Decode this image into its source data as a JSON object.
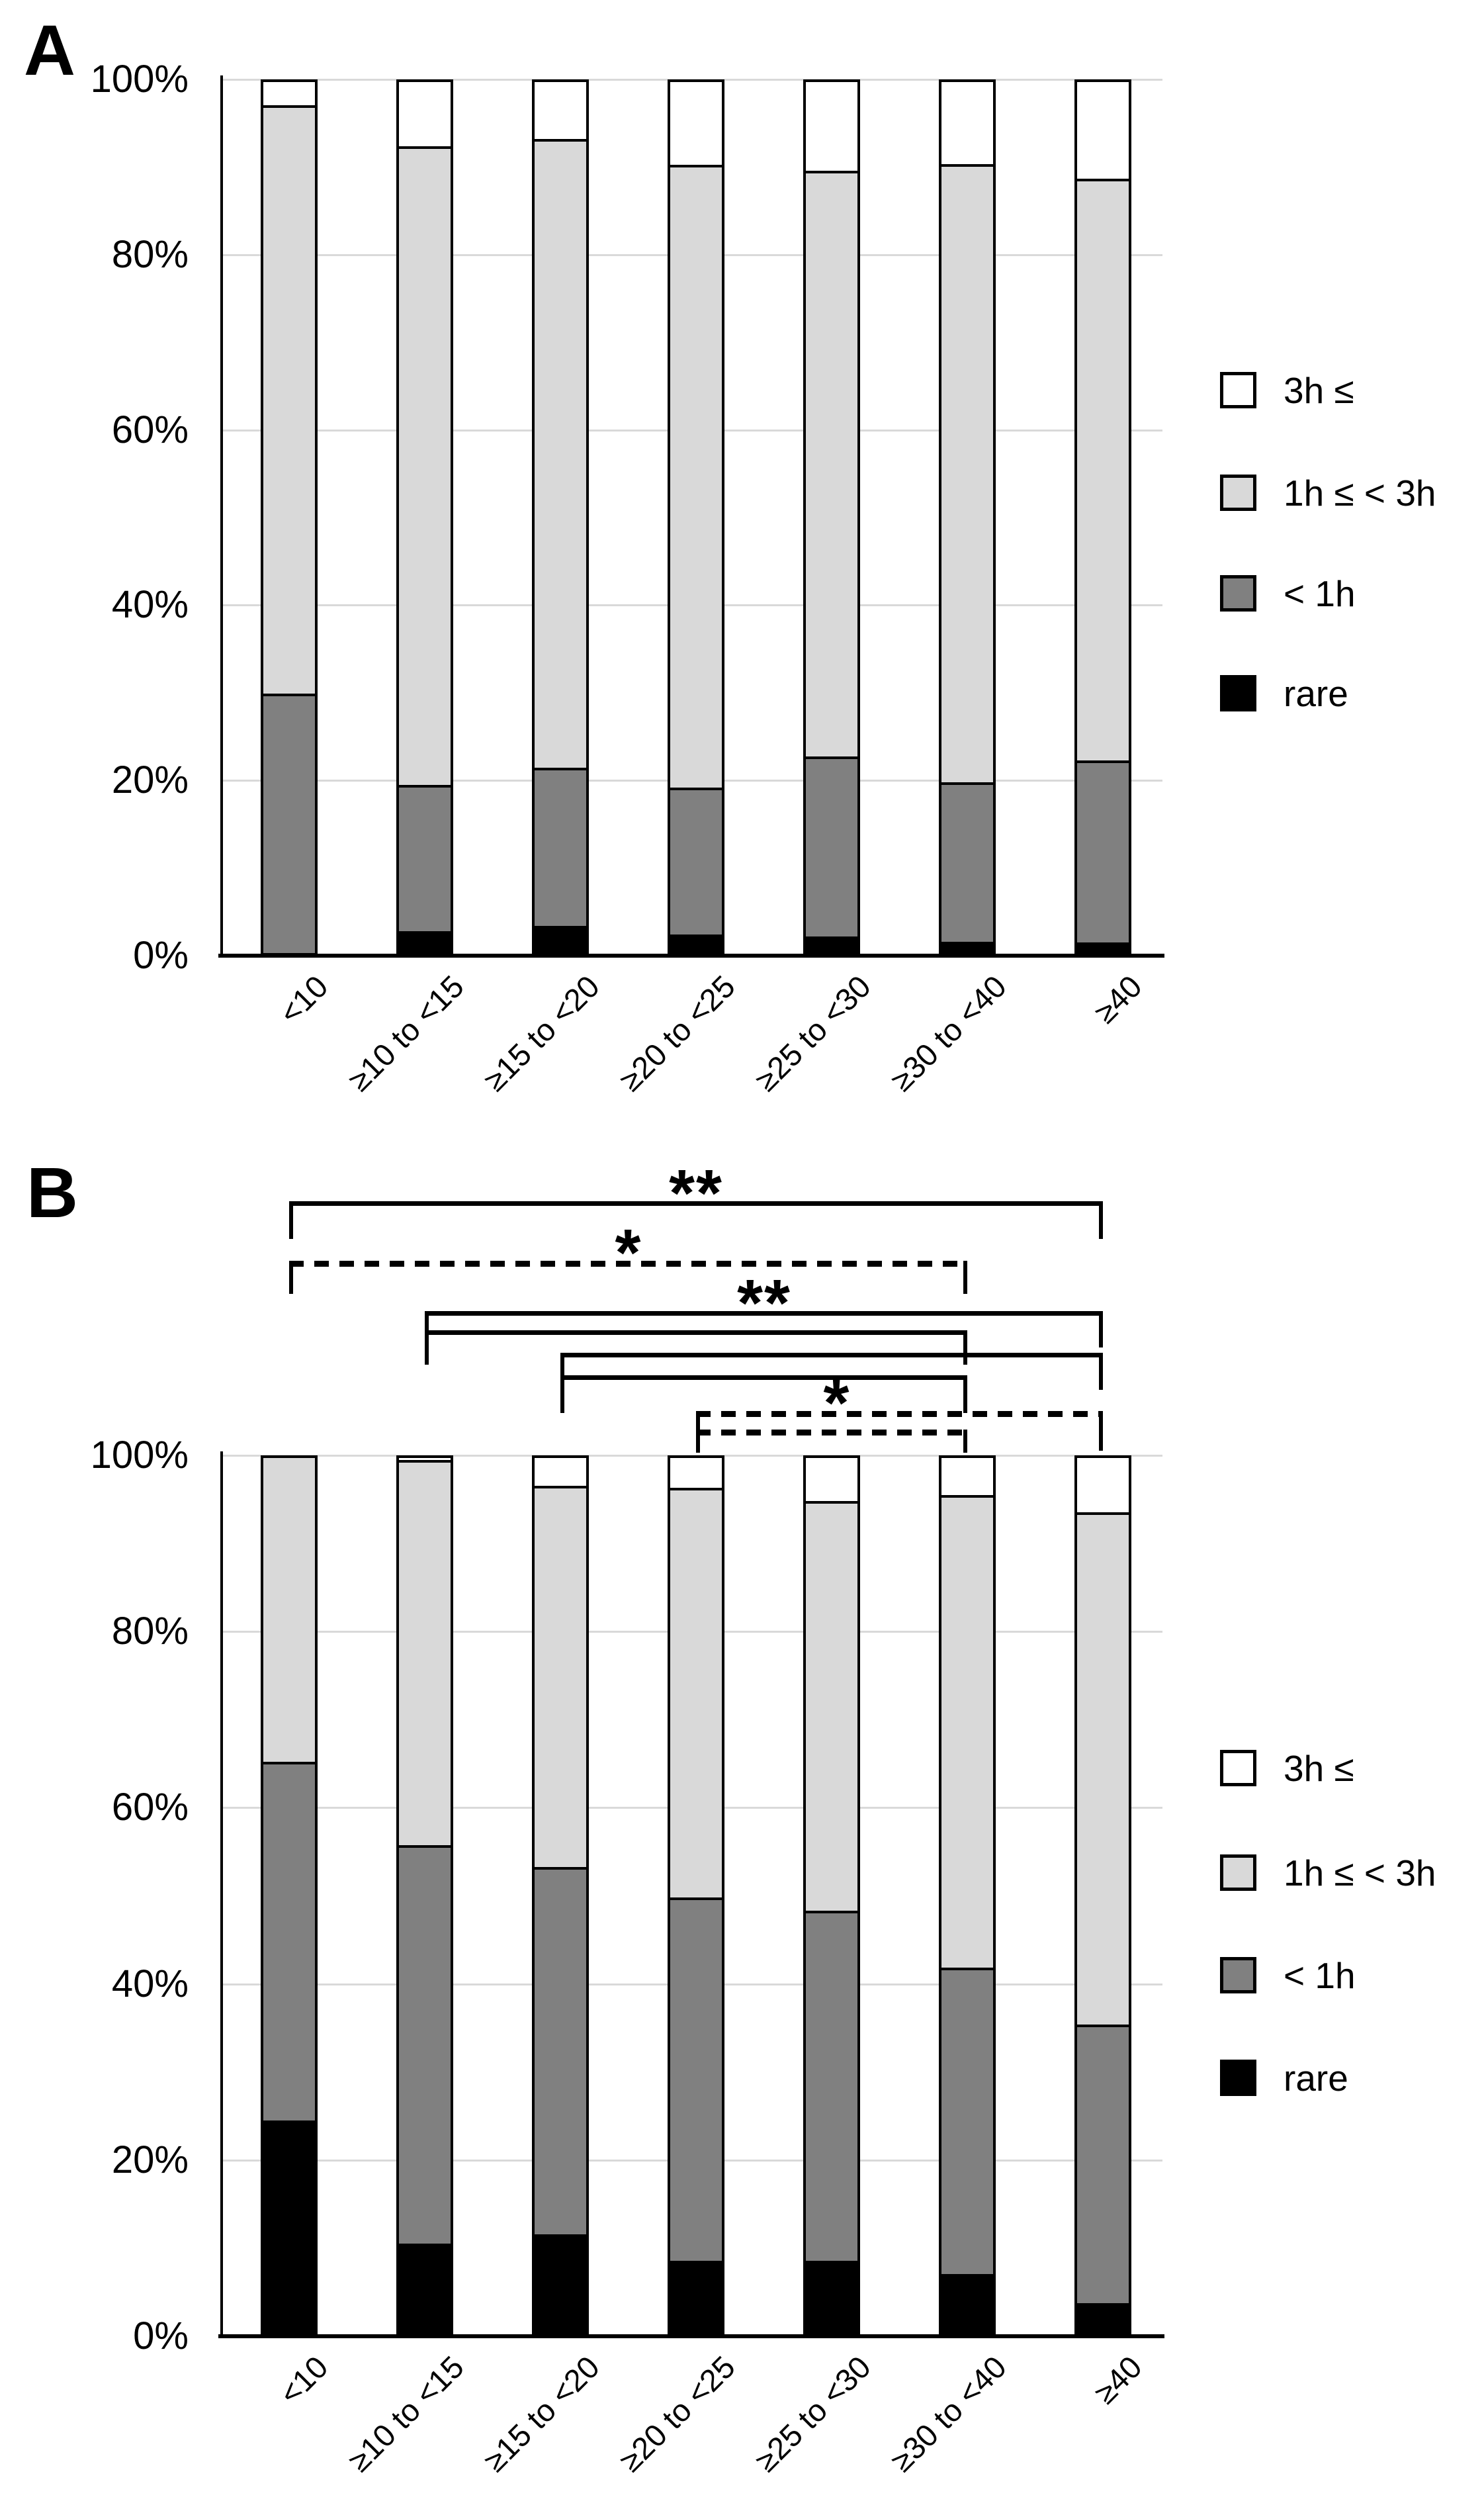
{
  "figure": {
    "panel_labels": [
      "A",
      "B"
    ],
    "background": "#ffffff",
    "axis_color": "#000000",
    "gridline_color": "#d9d9d9"
  },
  "legend": {
    "items": [
      {
        "name": "3h-or-more",
        "label": "3h ≤",
        "fill": "#ffffff"
      },
      {
        "name": "1h-to-under-3h",
        "label": "1h ≤ < 3h",
        "fill": "#d9d9d9"
      },
      {
        "name": "under-1h",
        "label": "< 1h",
        "fill": "#808080"
      },
      {
        "name": "rare",
        "label": "rare",
        "fill": "#000000"
      }
    ]
  },
  "chart_data": [
    {
      "id": "A",
      "panel_label": "A",
      "type": "bar",
      "subtype": "stacked-100pct",
      "title": "",
      "xlabel": "",
      "ylabel": "",
      "ylim": [
        0,
        100
      ],
      "grid": true,
      "legend_position": "right",
      "y_ticks": [
        "100%",
        "80%",
        "60%",
        "40%",
        "20%",
        "0%"
      ],
      "categories": [
        "<10",
        "≥10 to <15",
        "≥15 to <20",
        "≥20 to <25",
        "≥25 to <30",
        "≥30 to <40",
        "≥40"
      ],
      "series": [
        {
          "name": "rare",
          "color": "#000000",
          "values": [
            0.0,
            2.2,
            2.8,
            1.8,
            1.6,
            1.0,
            0.9
          ]
        },
        {
          "name": "< 1h",
          "color": "#808080",
          "values": [
            29.5,
            16.8,
            18.2,
            16.9,
            20.7,
            18.3,
            20.9
          ]
        },
        {
          "name": "1h ≤ < 3h",
          "color": "#d9d9d9",
          "values": [
            67.5,
            73.3,
            72.2,
            71.5,
            67.2,
            71.0,
            66.8
          ]
        },
        {
          "name": "3h ≤",
          "color": "#ffffff",
          "values": [
            3.0,
            7.7,
            6.8,
            9.8,
            10.5,
            9.7,
            11.4
          ]
        }
      ]
    },
    {
      "id": "B",
      "panel_label": "B",
      "type": "bar",
      "subtype": "stacked-100pct",
      "title": "",
      "xlabel": "",
      "ylabel": "",
      "ylim": [
        0,
        100
      ],
      "grid": true,
      "legend_position": "right",
      "y_ticks": [
        "100%",
        "80%",
        "60%",
        "40%",
        "20%",
        "0%"
      ],
      "categories": [
        "<10",
        "≥10 to <15",
        "≥15 to <20",
        "≥20 to <25",
        "≥25 to <30",
        "≥30 to <40",
        "≥40"
      ],
      "series": [
        {
          "name": "rare",
          "color": "#000000",
          "values": [
            24.0,
            10.0,
            11.0,
            8.0,
            8.0,
            6.5,
            3.2
          ]
        },
        {
          "name": "< 1h",
          "color": "#808080",
          "values": [
            41.0,
            45.5,
            42.0,
            41.5,
            40.0,
            35.0,
            31.8
          ]
        },
        {
          "name": "1h ≤ < 3h",
          "color": "#d9d9d9",
          "values": [
            35.0,
            44.0,
            43.5,
            46.8,
            46.8,
            54.0,
            58.5
          ]
        },
        {
          "name": "3h ≤",
          "color": "#ffffff",
          "values": [
            0.0,
            0.5,
            3.5,
            3.7,
            5.2,
            4.5,
            6.5
          ]
        }
      ],
      "significance_brackets": [
        {
          "from": "<10",
          "to": "≥40",
          "style": "solid",
          "label": "**"
        },
        {
          "from": "<10",
          "to": "≥30 to <40",
          "style": "dashed",
          "label": "*"
        },
        {
          "from": "≥10 to <15",
          "to": "≥40",
          "style": "solid",
          "label": "**"
        },
        {
          "from": "≥10 to <15",
          "to": "≥30 to <40",
          "style": "solid",
          "label": ""
        },
        {
          "from": "≥15 to <20",
          "to": "≥40",
          "style": "solid",
          "label": ""
        },
        {
          "from": "≥15 to <20",
          "to": "≥30 to <40",
          "style": "solid",
          "label": ""
        },
        {
          "from": "≥20 to <25",
          "to": "≥40",
          "style": "dashed",
          "label": "*"
        },
        {
          "from": "≥20 to <25",
          "to": "≥30 to <40",
          "style": "dashed",
          "label": ""
        }
      ]
    }
  ]
}
